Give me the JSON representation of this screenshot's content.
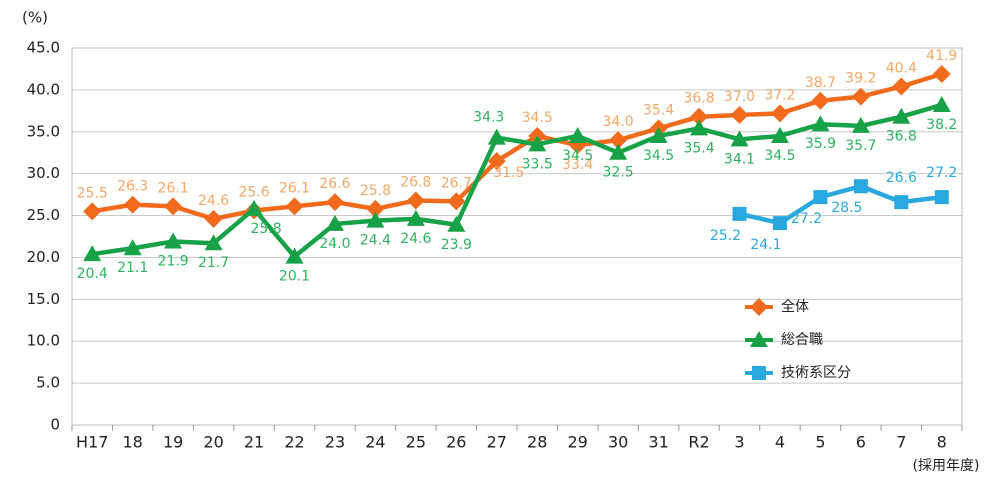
{
  "chart_data": {
    "type": "line",
    "y_label": "(%)",
    "x_label": "(採用年度)",
    "categories": [
      "H17",
      "18",
      "19",
      "20",
      "21",
      "22",
      "23",
      "24",
      "25",
      "26",
      "27",
      "28",
      "29",
      "30",
      "31",
      "R2",
      "3",
      "4",
      "5",
      "6",
      "7",
      "8"
    ],
    "ylim": [
      0,
      45
    ],
    "yticks": [
      0,
      {
        "value": 5,
        "label": "5.0"
      },
      {
        "value": 10,
        "label": "10.0"
      },
      {
        "value": 15,
        "label": "15.0"
      },
      {
        "value": 20,
        "label": "20.0"
      },
      {
        "value": 25,
        "label": "25.0"
      },
      {
        "value": 30,
        "label": "30.0"
      },
      {
        "value": 35,
        "label": "35.0"
      },
      {
        "value": 40,
        "label": "40.0"
      },
      {
        "value": 45,
        "label": "45.0"
      }
    ],
    "grid": true,
    "legend": "lower right",
    "series": [
      {
        "name": "全体",
        "color": "#f26b1d",
        "label_color": "#f5a766",
        "marker": "diamond",
        "values": [
          25.5,
          26.3,
          26.1,
          24.6,
          25.6,
          26.1,
          26.6,
          25.8,
          26.8,
          26.7,
          31.5,
          34.5,
          33.4,
          34.0,
          35.4,
          36.8,
          37.0,
          37.2,
          38.7,
          39.2,
          40.4,
          41.9
        ],
        "value_labels": [
          "25.5",
          "26.3",
          "26.1",
          "24.6",
          "25.6",
          "26.1",
          "26.6",
          "25.8",
          "26.8",
          "26.7",
          "31.5",
          "34.5",
          "33.4",
          "34.0",
          "35.4",
          "36.8",
          "37.0",
          "37.2",
          "38.7",
          "39.2",
          "40.4",
          "41.9"
        ]
      },
      {
        "name": "総合職",
        "color": "#17a247",
        "label_color": "#2db35d",
        "marker": "triangle",
        "values": [
          20.4,
          21.1,
          21.9,
          21.7,
          25.8,
          20.1,
          24.0,
          24.4,
          24.6,
          23.9,
          34.3,
          33.5,
          34.5,
          32.5,
          34.5,
          35.4,
          34.1,
          34.5,
          35.9,
          35.7,
          36.8,
          38.2
        ],
        "value_labels": [
          "20.4",
          "21.1",
          "21.9",
          "21.7",
          "25.8",
          "20.1",
          "24.0",
          "24.4",
          "24.6",
          "23.9",
          "34.3",
          "33.5",
          "34.5",
          "32.5",
          "34.5",
          "35.4",
          "34.1",
          "34.5",
          "35.9",
          "35.7",
          "36.8",
          "38.2"
        ]
      },
      {
        "name": "技術系区分",
        "color": "#29a8e0",
        "label_color": "#29a8e0",
        "marker": "square",
        "values": [
          null,
          null,
          null,
          null,
          null,
          null,
          null,
          null,
          null,
          null,
          null,
          null,
          null,
          null,
          null,
          null,
          25.2,
          24.1,
          27.2,
          28.5,
          26.6,
          27.2
        ],
        "value_labels": [
          null,
          null,
          null,
          null,
          null,
          null,
          null,
          null,
          null,
          null,
          null,
          null,
          null,
          null,
          null,
          null,
          "25.2",
          "24.1",
          "27.2",
          "28.5",
          "26.6",
          "27.2"
        ]
      }
    ]
  }
}
